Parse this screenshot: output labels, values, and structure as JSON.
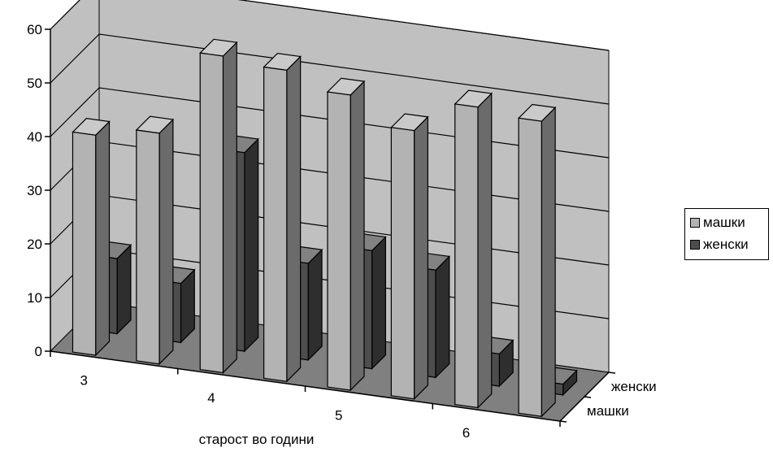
{
  "chart_data": {
    "type": "bar",
    "variant": "3d-column",
    "categories": [
      "3",
      "",
      "4",
      "",
      "5",
      "",
      "6",
      ""
    ],
    "series": [
      {
        "name": "машки",
        "values": [
          41,
          43,
          59,
          58,
          55,
          50,
          56,
          55
        ],
        "color": "#b3b3b3"
      },
      {
        "name": "женски",
        "values": [
          14,
          11,
          37,
          18,
          22,
          20,
          6,
          2
        ],
        "color": "#4d4d4d"
      }
    ],
    "xlabel": "старост во години",
    "ylabel": "",
    "zlabels": [
      "женски",
      "машки"
    ],
    "ylim": [
      0,
      60
    ],
    "yticks": [
      "0",
      "10",
      "20",
      "30",
      "40",
      "50",
      "60"
    ],
    "grid": true,
    "legend": "right",
    "wall_color": "#c0c0c0",
    "floor_color": "#808080"
  }
}
